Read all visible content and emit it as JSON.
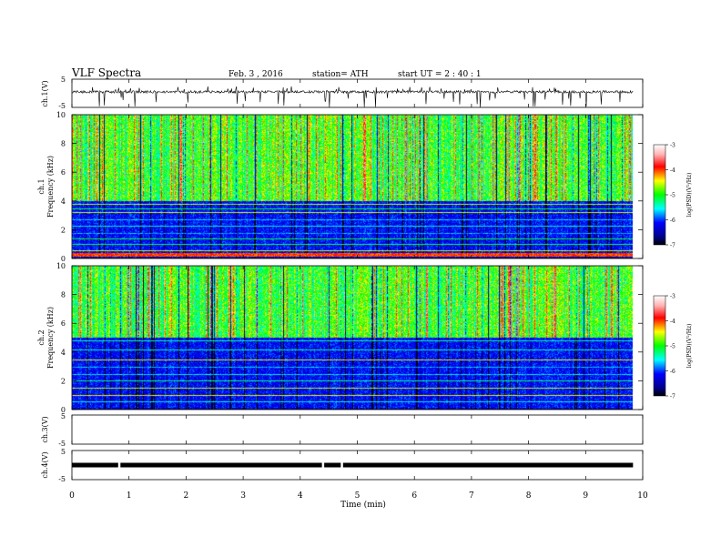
{
  "header": {
    "title": "VLF  Spectra",
    "date": "Feb. 3  , 2016",
    "station": "station= ATH",
    "start": "start  UT  =   2  : 40 : 1"
  },
  "chart_data": [
    {
      "type": "line",
      "ylabel": "ch.1(V)",
      "ylim": [
        -5,
        5
      ],
      "yticks": [
        "5",
        "-5"
      ],
      "description_values": {
        "baseline": 0.5,
        "spike_min": -5,
        "spike_max": 2.5
      }
    },
    {
      "type": "heatmap",
      "ylabel": "ch.1\nFrequency (kHz)",
      "ylabel_line1": "ch.1",
      "ylabel_line2": "Frequency  (kHz)",
      "ylim": [
        0,
        10
      ],
      "yticks": [
        "0",
        "2",
        "4",
        "6",
        "8",
        "10"
      ],
      "colorbar": {
        "label": "log(PSD)(V²/Hz)",
        "range": [
          -7,
          -3
        ],
        "ticks": [
          "-3",
          "-4",
          "-5",
          "-6",
          "-7"
        ]
      },
      "bands_khz": [
        0.3,
        0.6,
        1.0,
        1.4,
        1.8,
        2.3,
        2.7,
        3.2,
        3.5,
        3.8
      ]
    },
    {
      "type": "heatmap",
      "ylabel_line1": "ch.2",
      "ylabel_line2": "Frequency  (kHz)",
      "ylim": [
        0,
        10
      ],
      "yticks": [
        "0",
        "2",
        "4",
        "6",
        "8",
        "10"
      ],
      "colorbar": {
        "label": "log(PSD)(V²/Hz)",
        "range": [
          -7,
          -3
        ],
        "ticks": [
          "-3",
          "-4",
          "-5",
          "-6",
          "-7"
        ]
      },
      "bands_khz": [
        0.6,
        1.0,
        1.5,
        2.0,
        2.5,
        3.0,
        3.5,
        4.2,
        4.8
      ]
    },
    {
      "type": "line",
      "ylabel": "ch.3(V)",
      "ylim": [
        -5,
        5
      ],
      "yticks": [
        "5",
        "-5"
      ]
    },
    {
      "type": "line",
      "ylabel": "ch.4(V)",
      "ylim": [
        -5,
        5
      ],
      "yticks": [
        "5",
        "-5"
      ],
      "level": 0,
      "gaps_min": [
        0.83,
        4.4,
        4.73
      ]
    }
  ],
  "xaxis": {
    "label": "Time  (min)",
    "range": [
      0,
      10
    ],
    "ticks": [
      "0",
      "1",
      "2",
      "3",
      "4",
      "5",
      "6",
      "7",
      "8",
      "9",
      "10"
    ],
    "data_end": 9.83
  }
}
